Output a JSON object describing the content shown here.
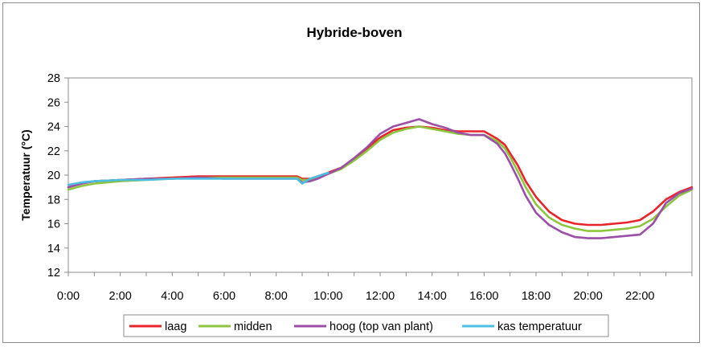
{
  "chart_data": {
    "type": "line",
    "title": "Hybride-boven",
    "xlabel": "",
    "ylabel": "Temperatuur (°C)",
    "ylim": [
      12,
      28
    ],
    "yticks": [
      "12",
      "14",
      "16",
      "18",
      "20",
      "22",
      "24",
      "26",
      "28"
    ],
    "xlim": [
      0,
      24
    ],
    "xtick_labels": [
      "0:00",
      "2:00",
      "4:00",
      "6:00",
      "8:00",
      "10:00",
      "12:00",
      "14:00",
      "16:00",
      "18:00",
      "20:00",
      "22:00"
    ],
    "grid": false,
    "legend": "bottom",
    "series": [
      {
        "name": "laag",
        "color": "#e8242a",
        "x": [
          0,
          0.5,
          1,
          2,
          3,
          4,
          5,
          6,
          7,
          8,
          8.8,
          9,
          9.3,
          9.6,
          10,
          10.5,
          11,
          11.5,
          12,
          12.5,
          13,
          13.5,
          14,
          14.5,
          15,
          15.5,
          16,
          16.5,
          16.8,
          17,
          17.3,
          17.6,
          18,
          18.5,
          19,
          19.5,
          20,
          20.5,
          21,
          21.5,
          22,
          22.5,
          23,
          23.5,
          24
        ],
        "y": [
          19.0,
          19.3,
          19.5,
          19.6,
          19.7,
          19.8,
          19.9,
          19.9,
          19.9,
          19.9,
          19.9,
          19.7,
          19.7,
          19.9,
          20.2,
          20.6,
          21.3,
          22.2,
          23.1,
          23.7,
          23.9,
          24.0,
          23.9,
          23.7,
          23.6,
          23.6,
          23.6,
          23.0,
          22.5,
          21.8,
          20.8,
          19.5,
          18.2,
          17.0,
          16.3,
          16.0,
          15.9,
          15.9,
          16.0,
          16.1,
          16.3,
          17.0,
          18.0,
          18.6,
          19.0
        ]
      },
      {
        "name": "midden",
        "color": "#8cc63f",
        "x": [
          0,
          0.5,
          1,
          2,
          3,
          4,
          5,
          6,
          7,
          8,
          8.8,
          9,
          9.3,
          9.6,
          10,
          10.5,
          11,
          11.5,
          12,
          12.5,
          13,
          13.5,
          14,
          14.5,
          15,
          15.5,
          16,
          16.5,
          16.8,
          17,
          17.3,
          17.6,
          18,
          18.5,
          19,
          19.5,
          20,
          20.5,
          21,
          21.5,
          22,
          22.5,
          23,
          23.5,
          24
        ],
        "y": [
          18.8,
          19.1,
          19.3,
          19.5,
          19.6,
          19.7,
          19.8,
          19.8,
          19.8,
          19.8,
          19.8,
          19.6,
          19.6,
          19.8,
          20.1,
          20.5,
          21.2,
          22.0,
          22.9,
          23.5,
          23.8,
          24.0,
          23.8,
          23.6,
          23.4,
          23.3,
          23.3,
          22.8,
          22.2,
          21.5,
          20.3,
          19.0,
          17.6,
          16.5,
          15.9,
          15.6,
          15.4,
          15.4,
          15.5,
          15.6,
          15.8,
          16.4,
          17.4,
          18.3,
          18.8
        ]
      },
      {
        "name": "hoog (top van plant)",
        "color": "#9b4fa6",
        "x": [
          0,
          0.5,
          1,
          2,
          3,
          4,
          5,
          6,
          7,
          8,
          8.8,
          9,
          9.3,
          9.6,
          10,
          10.5,
          11,
          11.5,
          12,
          12.5,
          13,
          13.5,
          14,
          14.5,
          15,
          15.5,
          16,
          16.5,
          16.8,
          17,
          17.3,
          17.6,
          18,
          18.5,
          19,
          19.5,
          20,
          20.5,
          21,
          21.5,
          22,
          22.5,
          23,
          23.5,
          24
        ],
        "y": [
          19.0,
          19.3,
          19.5,
          19.6,
          19.7,
          19.7,
          19.8,
          19.7,
          19.7,
          19.7,
          19.7,
          19.4,
          19.5,
          19.7,
          20.1,
          20.6,
          21.4,
          22.3,
          23.4,
          24.0,
          24.3,
          24.6,
          24.2,
          23.9,
          23.5,
          23.3,
          23.3,
          22.6,
          21.8,
          21.0,
          19.7,
          18.3,
          16.9,
          15.9,
          15.3,
          14.9,
          14.8,
          14.8,
          14.9,
          15.0,
          15.1,
          16.0,
          17.7,
          18.5,
          18.9
        ]
      },
      {
        "name": "kas temperatuur",
        "color": "#4bbfe0",
        "x": [
          0,
          0.5,
          1,
          2,
          3,
          4,
          5,
          6,
          7,
          8,
          8.8,
          9,
          9.3,
          9.6,
          10
        ],
        "y": [
          19.2,
          19.4,
          19.5,
          19.6,
          19.6,
          19.7,
          19.7,
          19.7,
          19.7,
          19.7,
          19.7,
          19.3,
          19.7,
          19.9,
          20.2
        ]
      }
    ]
  }
}
